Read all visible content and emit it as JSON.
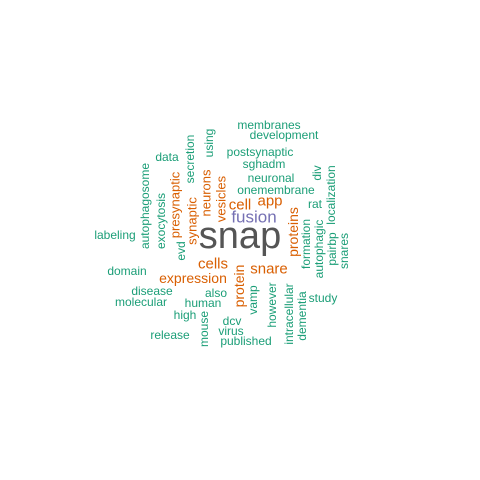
{
  "palette": {
    "teal": "#1b9e77",
    "orange": "#d95f02",
    "purple": "#7570b3",
    "gray": "#555555"
  },
  "words": {
    "snap": "snap",
    "fusion": "fusion",
    "cell": "cell",
    "app": "app",
    "snare": "snare",
    "cells": "cells",
    "expression": "expression",
    "proteins": "proteins",
    "protein": "protein",
    "presynaptic": "presynaptic",
    "synaptic": "synaptic",
    "neurons": "neurons",
    "vesicles": "vesicles",
    "membranes": "membranes",
    "development": "development",
    "postsynaptic": "postsynaptic",
    "sghadm": "sghadm",
    "neuronal": "neuronal",
    "onemembrane": "onemembrane",
    "rat": "rat",
    "data": "data",
    "secretion": "secretion",
    "using": "using",
    "div": "div",
    "localization": "localization",
    "autophagosome": "autophagosome",
    "exocytosis": "exocytosis",
    "evd": "evd",
    "labeling": "labeling",
    "formation": "formation",
    "autophagic": "autophagic",
    "pairbp": "pairbp",
    "snares": "snares",
    "domain": "domain",
    "disease": "disease",
    "also": "also",
    "molecular": "molecular",
    "human": "human",
    "high": "high",
    "vamp": "vamp",
    "however": "however",
    "dementia": "dementia",
    "study": "study",
    "release": "release",
    "mouse": "mouse",
    "dcv": "dcv",
    "virus": "virus",
    "published": "published",
    "intracellular": "intracellular"
  }
}
